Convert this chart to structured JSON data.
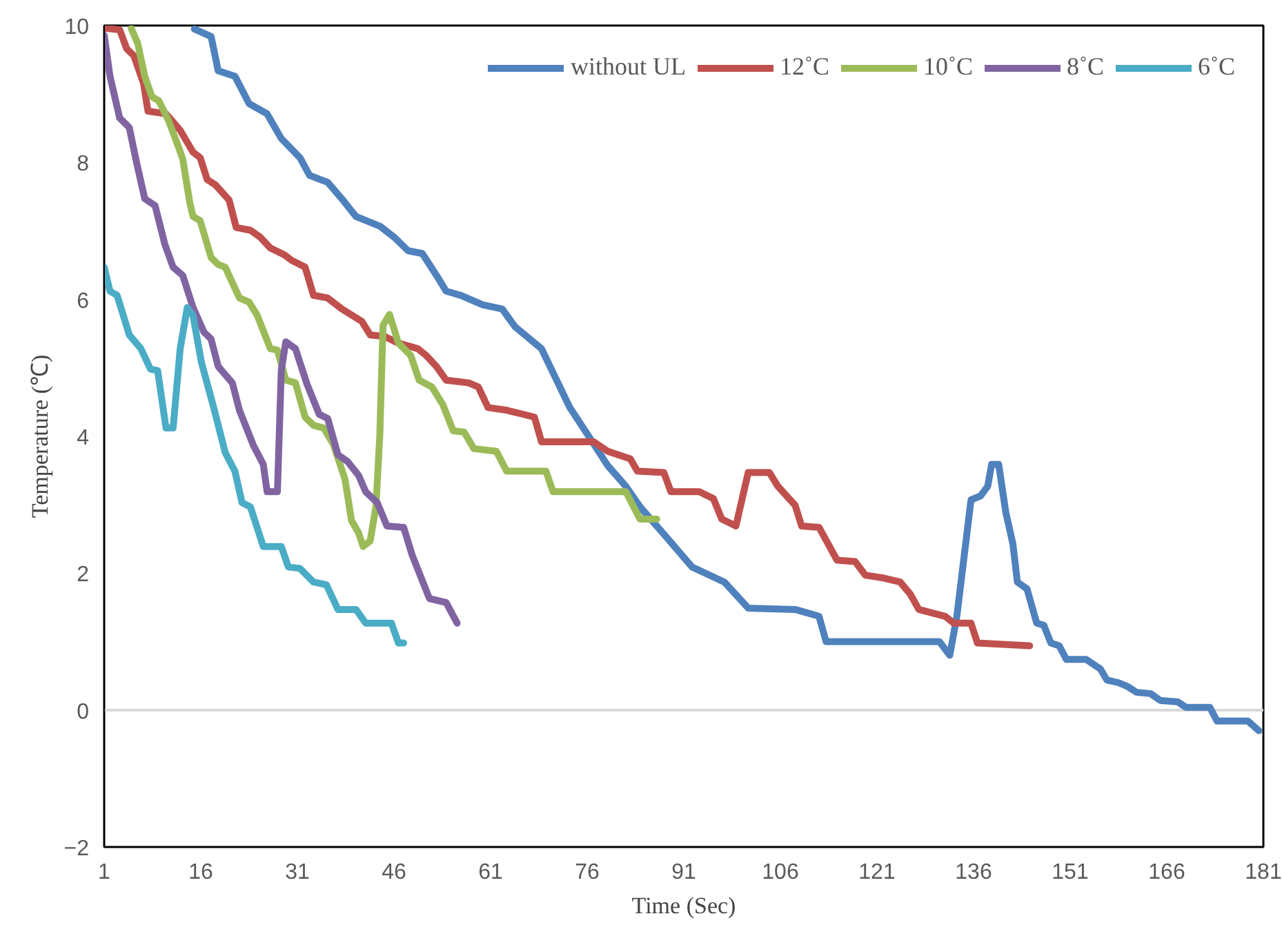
{
  "chart_data": {
    "type": "line",
    "xlabel": "Time (Sec)",
    "ylabel": "Temperature (℃)",
    "xlim": [
      1,
      181
    ],
    "xticks": [
      1,
      16,
      31,
      46,
      61,
      76,
      91,
      106,
      121,
      136,
      151,
      166,
      181
    ],
    "ylim": [
      -2,
      10
    ],
    "yticks": [
      -2,
      0,
      2,
      4,
      6,
      8,
      10
    ],
    "grid": false,
    "ref_lines": [
      {
        "axis": "y",
        "value": 0,
        "color": "#d9d9d9"
      }
    ],
    "legend": "top right",
    "line_style": "solid",
    "marker": "none",
    "series": [
      {
        "name": "without UL",
        "color": "#4f81bd",
        "x": [
          15.0,
          17.6,
          18.7,
          21.3,
          23.5,
          26.3,
          28.5,
          31.4,
          32.9,
          35.7,
          37.9,
          40.1,
          43.8,
          46.0,
          48.2,
          50.4,
          52.6,
          54.1,
          56.3,
          59.8,
          62.8,
          64.8,
          68.9,
          73.3,
          76.1,
          79.2,
          82.0,
          84.2,
          87.9,
          92.3,
          97.3,
          101.0,
          108.3,
          112.0,
          113.1,
          130.7,
          132.3,
          133.4,
          135.6,
          137.1,
          138.2,
          138.8,
          139.9,
          141.0,
          142.1,
          142.8,
          144.3,
          145.8,
          146.9,
          148.0,
          149.3,
          150.4,
          153.5,
          155.7,
          156.7,
          158.5,
          160.0,
          161.3,
          163.5,
          165.0,
          167.7,
          169.0,
          172.7,
          173.8,
          178.6,
          180.3
        ],
        "values": [
          9.95,
          9.84,
          9.34,
          9.26,
          8.86,
          8.71,
          8.35,
          8.07,
          7.81,
          7.71,
          7.47,
          7.21,
          7.07,
          6.91,
          6.71,
          6.67,
          6.35,
          6.12,
          6.06,
          5.92,
          5.86,
          5.6,
          5.28,
          4.42,
          4.02,
          3.57,
          3.27,
          2.97,
          2.57,
          2.09,
          1.87,
          1.49,
          1.47,
          1.37,
          1.0,
          1.0,
          0.8,
          1.37,
          3.07,
          3.13,
          3.27,
          3.59,
          3.59,
          2.89,
          2.43,
          1.87,
          1.77,
          1.27,
          1.24,
          0.98,
          0.94,
          0.74,
          0.74,
          0.6,
          0.44,
          0.4,
          0.34,
          0.26,
          0.24,
          0.14,
          0.12,
          0.04,
          0.04,
          -0.16,
          -0.16,
          -0.3
        ]
      },
      {
        "name": "12˚C",
        "color": "#c0504d",
        "x": [
          1.2,
          3.4,
          4.5,
          5.6,
          7.1,
          7.8,
          10.6,
          12.8,
          14.8,
          15.9,
          17.0,
          18.3,
          20.4,
          21.5,
          23.7,
          25.2,
          26.8,
          29.0,
          30.1,
          32.2,
          33.5,
          35.7,
          37.9,
          41.0,
          42.3,
          44.5,
          46.7,
          49.7,
          51.0,
          52.6,
          54.1,
          57.6,
          59.1,
          60.6,
          63.5,
          66.1,
          67.8,
          68.9,
          77.0,
          79.2,
          82.7,
          83.8,
          87.9,
          89.0,
          93.4,
          95.6,
          96.9,
          99.1,
          101.0,
          104.3,
          105.6,
          108.3,
          109.3,
          112.0,
          114.8,
          117.6,
          119.2,
          122.0,
          124.6,
          126.2,
          127.5,
          131.6,
          132.9,
          135.6,
          136.6,
          144.7
        ],
        "values": [
          9.96,
          9.94,
          9.66,
          9.56,
          9.16,
          8.75,
          8.71,
          8.47,
          8.15,
          8.07,
          7.75,
          7.67,
          7.45,
          7.05,
          7.01,
          6.91,
          6.75,
          6.65,
          6.57,
          6.47,
          6.06,
          6.02,
          5.86,
          5.68,
          5.48,
          5.46,
          5.36,
          5.28,
          5.18,
          5.02,
          4.82,
          4.78,
          4.72,
          4.42,
          4.38,
          4.32,
          4.28,
          3.92,
          3.92,
          3.78,
          3.67,
          3.49,
          3.47,
          3.19,
          3.19,
          3.09,
          2.79,
          2.69,
          3.47,
          3.47,
          3.27,
          2.99,
          2.69,
          2.67,
          2.19,
          2.17,
          1.97,
          1.93,
          1.87,
          1.69,
          1.47,
          1.37,
          1.27,
          1.27,
          0.98,
          0.94
        ]
      },
      {
        "name": "10˚C",
        "color": "#9bbb59",
        "x": [
          5.2,
          6.2,
          7.3,
          8.4,
          9.5,
          11.0,
          12.6,
          13.2,
          14.3,
          14.8,
          15.9,
          17.6,
          18.7,
          19.8,
          22.0,
          23.5,
          24.8,
          26.8,
          27.9,
          29.2,
          30.7,
          32.2,
          33.5,
          35.1,
          36.6,
          38.4,
          39.4,
          40.5,
          41.2,
          42.3,
          43.2,
          43.8,
          44.3,
          45.3,
          46.7,
          48.6,
          49.9,
          51.9,
          53.6,
          55.2,
          56.9,
          58.4,
          61.9,
          63.5,
          69.6,
          70.7,
          82.0,
          84.2,
          86.8
        ],
        "values": [
          9.96,
          9.74,
          9.26,
          8.96,
          8.9,
          8.61,
          8.21,
          8.05,
          7.41,
          7.21,
          7.15,
          6.61,
          6.51,
          6.47,
          6.02,
          5.96,
          5.76,
          5.28,
          5.26,
          4.82,
          4.78,
          4.28,
          4.16,
          4.12,
          3.88,
          3.37,
          2.77,
          2.59,
          2.39,
          2.47,
          2.97,
          4.02,
          5.62,
          5.78,
          5.36,
          5.18,
          4.82,
          4.72,
          4.46,
          4.08,
          4.06,
          3.82,
          3.78,
          3.49,
          3.49,
          3.19,
          3.19,
          2.79,
          2.79
        ]
      },
      {
        "name": "8˚C",
        "color": "#8064a2",
        "x": [
          1.0,
          1.9,
          3.4,
          4.9,
          6.0,
          7.3,
          8.9,
          10.4,
          11.7,
          13.2,
          14.8,
          16.5,
          17.6,
          18.7,
          20.9,
          22.0,
          24.2,
          25.7,
          26.3,
          27.9,
          28.5,
          29.2,
          30.7,
          32.5,
          34.4,
          35.7,
          37.3,
          38.8,
          40.5,
          41.6,
          43.4,
          44.9,
          47.5,
          48.8,
          51.5,
          54.1,
          55.8
        ],
        "values": [
          9.86,
          9.26,
          8.65,
          8.51,
          8.01,
          7.47,
          7.37,
          6.81,
          6.47,
          6.35,
          5.88,
          5.52,
          5.42,
          5.02,
          4.78,
          4.38,
          3.86,
          3.59,
          3.19,
          3.19,
          4.96,
          5.38,
          5.28,
          4.76,
          4.32,
          4.26,
          3.73,
          3.63,
          3.43,
          3.19,
          3.03,
          2.69,
          2.67,
          2.27,
          1.63,
          1.57,
          1.27
        ]
      },
      {
        "name": "6˚C",
        "color": "#4bacc6",
        "x": [
          1.0,
          1.9,
          3.0,
          4.9,
          6.7,
          8.2,
          9.3,
          10.6,
          11.7,
          12.8,
          13.9,
          14.8,
          16.1,
          18.0,
          19.8,
          21.3,
          22.4,
          23.7,
          25.7,
          28.5,
          29.6,
          31.4,
          33.5,
          35.5,
          37.3,
          40.1,
          41.6,
          45.6,
          46.7,
          47.5
        ],
        "values": [
          6.47,
          6.12,
          6.06,
          5.48,
          5.28,
          4.98,
          4.96,
          4.12,
          4.12,
          5.28,
          5.88,
          5.76,
          5.08,
          4.42,
          3.76,
          3.49,
          3.03,
          2.97,
          2.39,
          2.39,
          2.09,
          2.07,
          1.87,
          1.83,
          1.47,
          1.47,
          1.27,
          1.27,
          0.98,
          0.98
        ]
      }
    ]
  }
}
